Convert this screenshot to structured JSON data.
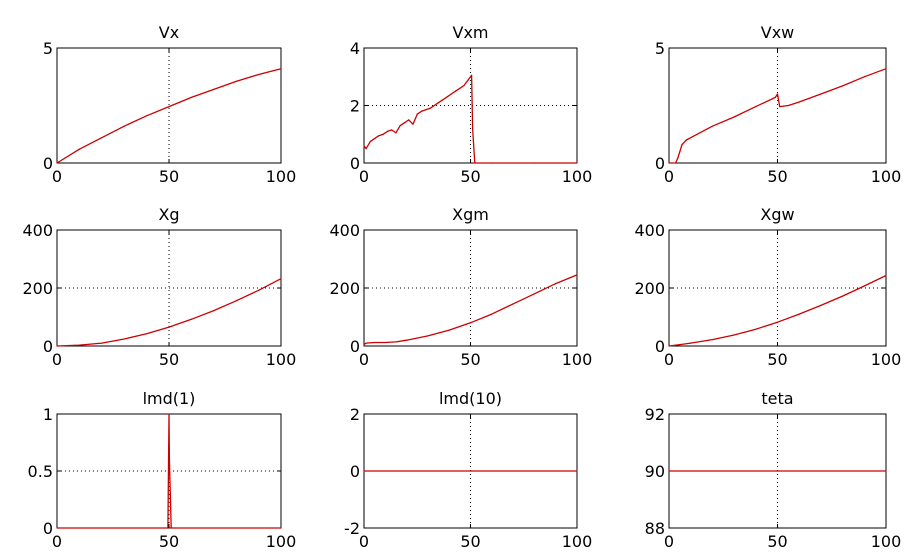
{
  "style": {
    "line_color": "#cc0000",
    "background": "#ffffff",
    "axis_color": "#000000",
    "grid": "dotted"
  },
  "chart_data": [
    {
      "type": "line",
      "title": "Vx",
      "xlim": [
        0,
        100
      ],
      "ylim": [
        0,
        5
      ],
      "grid": true,
      "xticks": [
        0,
        50,
        100
      ],
      "xtick_labels": [
        "0",
        "50",
        "100"
      ],
      "yticks": [
        0,
        5
      ],
      "ytick_labels": [
        "0",
        "5"
      ],
      "series": [
        {
          "x": [
            0,
            10,
            20,
            30,
            40,
            50,
            60,
            70,
            80,
            90,
            100
          ],
          "y": [
            0,
            0.6,
            1.1,
            1.6,
            2.05,
            2.45,
            2.85,
            3.2,
            3.55,
            3.85,
            4.1
          ]
        }
      ]
    },
    {
      "type": "line",
      "title": "Vxm",
      "xlim": [
        0,
        100
      ],
      "ylim": [
        0,
        4
      ],
      "grid": true,
      "xticks": [
        0,
        50,
        100
      ],
      "xtick_labels": [
        "0",
        "50",
        "100"
      ],
      "yticks": [
        0,
        2,
        4
      ],
      "ytick_labels": [
        "0",
        "2",
        "4"
      ],
      "series": [
        {
          "x": [
            0,
            1,
            3,
            5,
            7,
            9,
            11,
            13,
            15,
            17,
            19,
            21,
            23,
            25,
            27,
            29,
            31,
            33,
            35,
            37,
            39,
            41,
            43,
            45,
            47,
            49,
            50,
            50.5,
            51,
            52,
            60,
            80,
            100
          ],
          "y": [
            0.6,
            0.5,
            0.75,
            0.85,
            0.95,
            1.0,
            1.1,
            1.15,
            1.05,
            1.3,
            1.4,
            1.5,
            1.35,
            1.7,
            1.8,
            1.85,
            1.9,
            2.0,
            2.1,
            2.2,
            2.3,
            2.4,
            2.5,
            2.6,
            2.7,
            2.9,
            3.0,
            3.05,
            1.2,
            0,
            0,
            0,
            0
          ]
        }
      ]
    },
    {
      "type": "line",
      "title": "Vxw",
      "xlim": [
        0,
        100
      ],
      "ylim": [
        0,
        5
      ],
      "grid": true,
      "xticks": [
        0,
        50,
        100
      ],
      "xtick_labels": [
        "0",
        "50",
        "100"
      ],
      "yticks": [
        0,
        5
      ],
      "ytick_labels": [
        "0",
        "5"
      ],
      "series": [
        {
          "x": [
            0,
            3,
            4,
            5,
            6,
            8,
            10,
            15,
            20,
            30,
            40,
            49,
            50,
            51,
            55,
            60,
            70,
            80,
            90,
            100
          ],
          "y": [
            0,
            0,
            0.2,
            0.5,
            0.8,
            1.0,
            1.1,
            1.35,
            1.6,
            2.0,
            2.45,
            2.85,
            3.0,
            2.45,
            2.5,
            2.65,
            3.0,
            3.35,
            3.75,
            4.1
          ]
        }
      ]
    },
    {
      "type": "line",
      "title": "Xg",
      "xlim": [
        0,
        100
      ],
      "ylim": [
        0,
        400
      ],
      "grid": true,
      "xticks": [
        0,
        50,
        100
      ],
      "xtick_labels": [
        "0",
        "50",
        "100"
      ],
      "yticks": [
        0,
        200,
        400
      ],
      "ytick_labels": [
        "0",
        "200",
        "400"
      ],
      "series": [
        {
          "x": [
            0,
            10,
            20,
            30,
            40,
            50,
            60,
            70,
            80,
            90,
            100
          ],
          "y": [
            0,
            3,
            10,
            24,
            42,
            65,
            92,
            122,
            156,
            192,
            232
          ]
        }
      ]
    },
    {
      "type": "line",
      "title": "Xgm",
      "xlim": [
        0,
        100
      ],
      "ylim": [
        0,
        400
      ],
      "grid": true,
      "xticks": [
        0,
        50,
        100
      ],
      "xtick_labels": [
        "0",
        "50",
        "100"
      ],
      "yticks": [
        0,
        200,
        400
      ],
      "ytick_labels": [
        "0",
        "200",
        "400"
      ],
      "series": [
        {
          "x": [
            0,
            1,
            5,
            10,
            15,
            20,
            30,
            40,
            50,
            60,
            70,
            80,
            90,
            100
          ],
          "y": [
            5,
            10,
            12,
            12,
            14,
            20,
            35,
            55,
            80,
            110,
            145,
            180,
            215,
            245
          ]
        }
      ]
    },
    {
      "type": "line",
      "title": "Xgw",
      "xlim": [
        0,
        100
      ],
      "ylim": [
        0,
        400
      ],
      "grid": true,
      "xticks": [
        0,
        50,
        100
      ],
      "xtick_labels": [
        "0",
        "50",
        "100"
      ],
      "yticks": [
        0,
        200,
        400
      ],
      "ytick_labels": [
        "0",
        "200",
        "400"
      ],
      "series": [
        {
          "x": [
            0,
            5,
            10,
            20,
            30,
            40,
            50,
            60,
            70,
            80,
            90,
            100
          ],
          "y": [
            0,
            5,
            10,
            22,
            38,
            58,
            82,
            110,
            140,
            172,
            207,
            243
          ]
        }
      ]
    },
    {
      "type": "line",
      "title": "lmd(1)",
      "xlim": [
        0,
        100
      ],
      "ylim": [
        0,
        1
      ],
      "grid": true,
      "xticks": [
        0,
        50,
        100
      ],
      "xtick_labels": [
        "0",
        "50",
        "100"
      ],
      "yticks": [
        0,
        0.5,
        1
      ],
      "ytick_labels": [
        "0",
        "0.5",
        "1"
      ],
      "series": [
        {
          "x": [
            0,
            49.5,
            50,
            50.2,
            50.6,
            51,
            100
          ],
          "y": [
            0,
            0,
            1.0,
            0.6,
            0.3,
            0,
            0
          ]
        }
      ]
    },
    {
      "type": "line",
      "title": "lmd(10)",
      "xlim": [
        0,
        100
      ],
      "ylim": [
        -2,
        2
      ],
      "grid": true,
      "xticks": [
        0,
        50,
        100
      ],
      "xtick_labels": [
        "0",
        "50",
        "100"
      ],
      "yticks": [
        -2,
        0,
        2
      ],
      "ytick_labels": [
        "-2",
        "0",
        "2"
      ],
      "series": [
        {
          "x": [
            0,
            100
          ],
          "y": [
            0,
            0
          ]
        }
      ]
    },
    {
      "type": "line",
      "title": "teta",
      "xlim": [
        0,
        100
      ],
      "ylim": [
        88,
        92
      ],
      "grid": true,
      "xticks": [
        0,
        50,
        100
      ],
      "xtick_labels": [
        "0",
        "50",
        "100"
      ],
      "yticks": [
        88,
        90,
        92
      ],
      "ytick_labels": [
        "88",
        "90",
        "92"
      ],
      "series": [
        {
          "x": [
            0,
            100
          ],
          "y": [
            90,
            90
          ]
        }
      ]
    }
  ]
}
